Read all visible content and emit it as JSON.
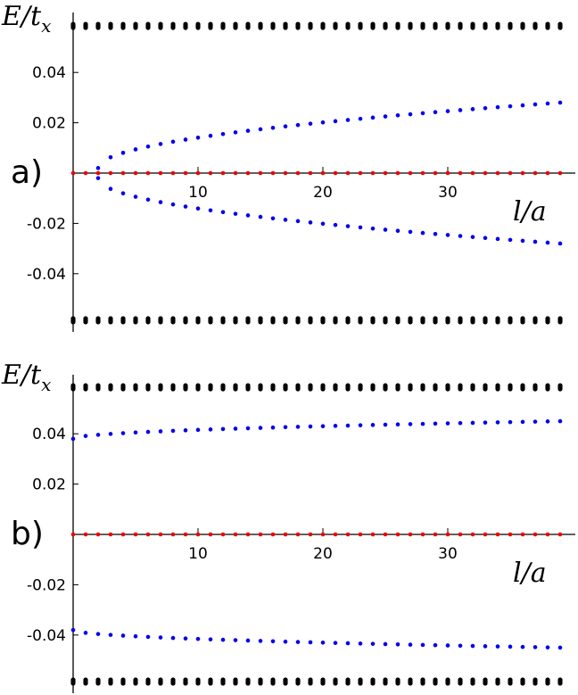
{
  "colors": {
    "bulk": "#000000",
    "edge": "#0000ee",
    "zero": "#ee0000",
    "axis": "#000000"
  },
  "chart_data": [
    {
      "type": "scatter",
      "panel_label": "a)",
      "ylabel": "E/t_x",
      "ylabel_parts": {
        "main": "E/t",
        "sub": "x"
      },
      "xlabel": "l/a",
      "xlim": [
        0,
        40
      ],
      "ylim": [
        -0.06,
        0.06
      ],
      "x_ticks": [
        10,
        20,
        30
      ],
      "x_tick_labels": [
        "10",
        "20",
        "30"
      ],
      "y_ticks": [
        -0.04,
        -0.02,
        0.02,
        0.04
      ],
      "y_tick_labels": [
        "-0.04",
        "-0.02",
        "0.02",
        "0.04"
      ],
      "grid": false,
      "series": [
        {
          "role": "bulk",
          "color": "#000000",
          "x_start": 0,
          "x_end": 39,
          "x_step": 1,
          "level": 0.0585,
          "symmetric": true,
          "stack_offsets": [
            -0.0007,
            -0.00023,
            0.00023,
            0.0007
          ]
        },
        {
          "role": "edge",
          "color": "#0000ee",
          "x_start": 2,
          "x_end": 39,
          "x_step": 1,
          "curve": "sqrt",
          "y_at_start": 0.002,
          "y_at_end": 0.028,
          "symmetric": true
        },
        {
          "role": "zero",
          "color": "#ee0000",
          "x_start": 0,
          "x_end": 39,
          "x_step": 1,
          "level": 0.0,
          "symmetric": false
        }
      ]
    },
    {
      "type": "scatter",
      "panel_label": "b)",
      "ylabel": "E/t_x",
      "ylabel_parts": {
        "main": "E/t",
        "sub": "x"
      },
      "xlabel": "l/a",
      "xlim": [
        0,
        40
      ],
      "ylim": [
        -0.06,
        0.06
      ],
      "x_ticks": [
        10,
        20,
        30
      ],
      "x_tick_labels": [
        "10",
        "20",
        "30"
      ],
      "y_ticks": [
        -0.04,
        -0.02,
        0.02,
        0.04
      ],
      "y_tick_labels": [
        "-0.04",
        "-0.02",
        "0.02",
        "0.04"
      ],
      "grid": false,
      "series": [
        {
          "role": "bulk",
          "color": "#000000",
          "x_start": 0,
          "x_end": 39,
          "x_step": 1,
          "level": 0.0585,
          "symmetric": true,
          "stack_offsets": [
            -0.0007,
            -0.00023,
            0.00023,
            0.0007
          ]
        },
        {
          "role": "edge",
          "color": "#0000ee",
          "x_start": 0,
          "x_end": 39,
          "x_step": 1,
          "curve": "sqrt",
          "y_at_start": 0.038,
          "y_at_end": 0.045,
          "symmetric": true
        },
        {
          "role": "zero",
          "color": "#ee0000",
          "x_start": 0,
          "x_end": 39,
          "x_step": 1,
          "level": 0.0,
          "symmetric": false
        }
      ]
    }
  ]
}
